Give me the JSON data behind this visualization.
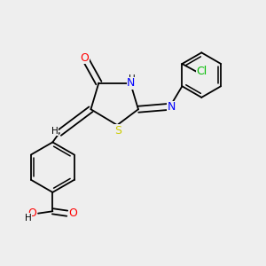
{
  "bg_color": "#eeeeee",
  "bond_color": "#000000",
  "atom_colors": {
    "O": "#ff0000",
    "N": "#0000ff",
    "S": "#cccc00",
    "Cl": "#00bb00",
    "C": "#000000",
    "H": "#000000"
  },
  "font_size": 8,
  "line_width": 1.3,
  "dbo": 0.013,
  "figsize": [
    3.0,
    3.0
  ],
  "dpi": 100
}
